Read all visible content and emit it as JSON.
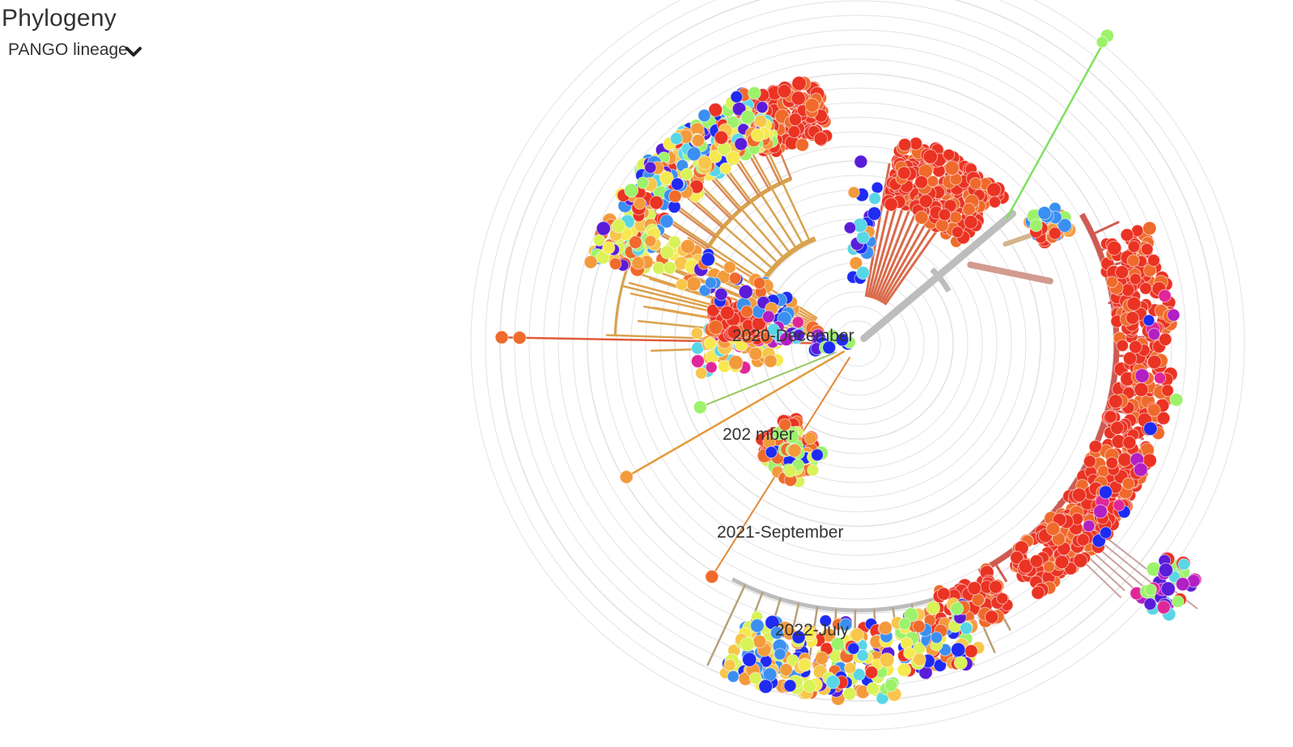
{
  "header": {
    "title": "Phylogeny",
    "color_by_label": "PANGO lineage",
    "dropdown_icon": "chevron-down-icon"
  },
  "tree": {
    "layout": "radial",
    "ring_count": 26,
    "ring_color": "#e3e3e3",
    "date_labels": [
      "2020-December",
      "2021-September",
      "2022-July"
    ],
    "partial_date_label": "202  mber",
    "palette": [
      "#ea3323",
      "#ef6a2b",
      "#f39a3b",
      "#f7c64a",
      "#f5e94f",
      "#d8f257",
      "#9cf26a",
      "#5fe39a",
      "#58d6e6",
      "#3b8ff0",
      "#1f2bf2",
      "#5a1cd9",
      "#b21fc2",
      "#e0279a"
    ],
    "branch_colors": {
      "trunk": "#bdbdbd",
      "clade": "#d8a24e",
      "red_clade": "#d05a52"
    }
  }
}
